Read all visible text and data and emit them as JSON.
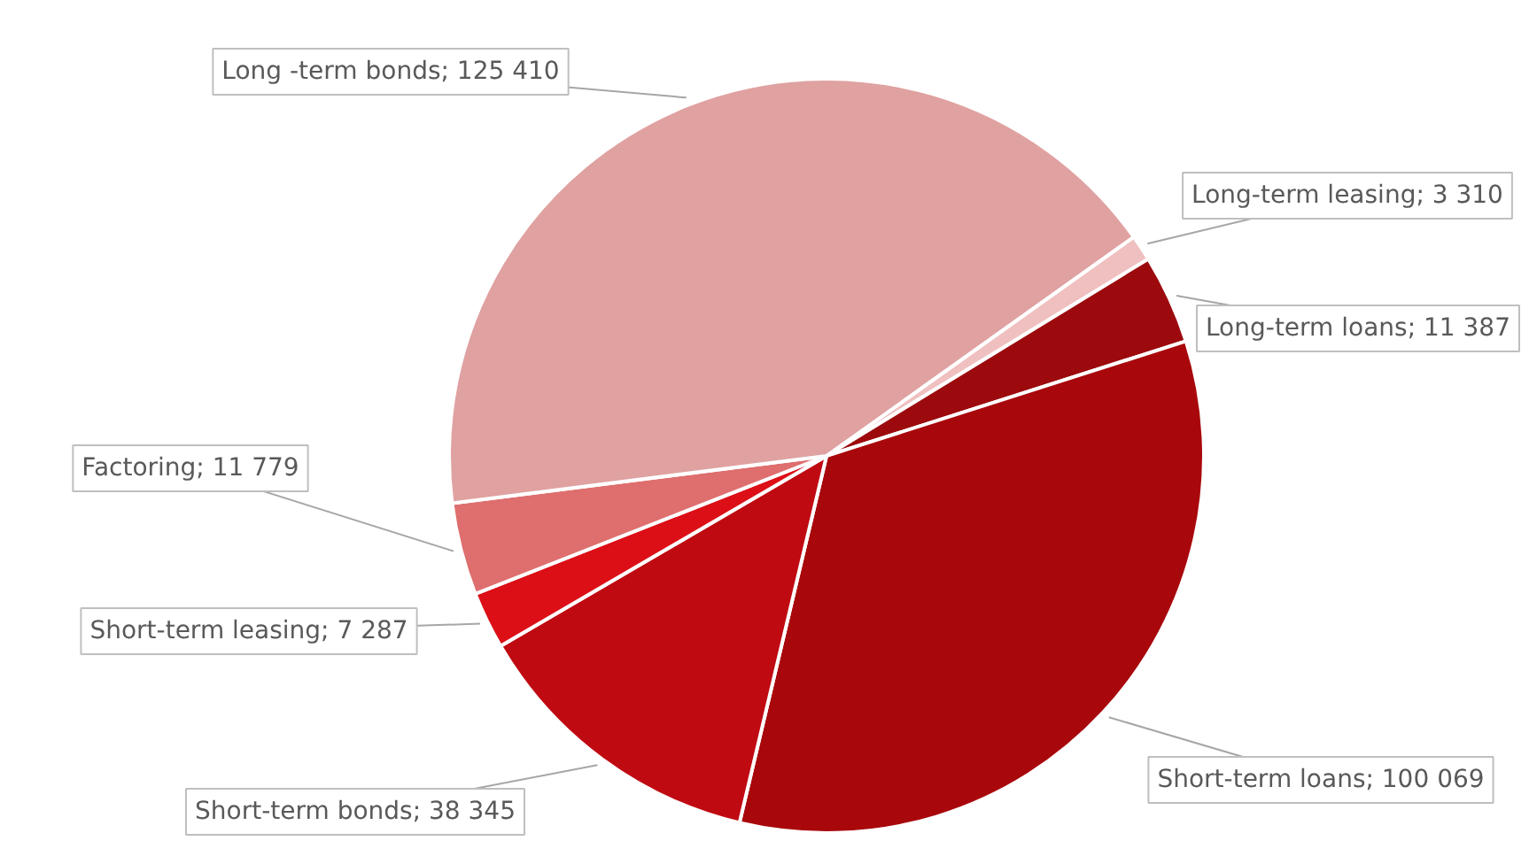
{
  "chart_data": {
    "type": "pie",
    "categories": [
      "Long-term leasing",
      "Long-term loans",
      "Short-term loans",
      "Short-term bonds",
      "Short-term leasing",
      "Factoring",
      "Long -term bonds"
    ],
    "values": [
      3310,
      11387,
      100069,
      38345,
      7287,
      11779,
      125410
    ],
    "value_labels": [
      "3 310",
      "11 387",
      "100 069",
      "38 345",
      "7 287",
      "11 779",
      "125 410"
    ],
    "colors": [
      "#f0c0c0",
      "#9c0a0e",
      "#a8080c",
      "#c00a12",
      "#dc0f17",
      "#df6e6e",
      "#e0a1a1"
    ]
  }
}
